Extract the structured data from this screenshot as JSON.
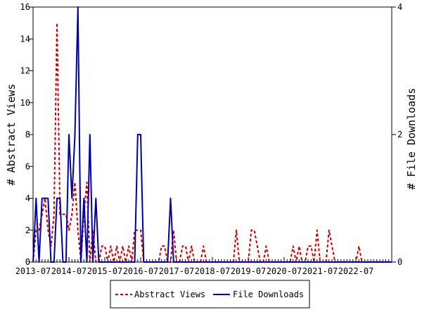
{
  "chart_data": {
    "type": "line",
    "y_left_label": "# Abstract Views",
    "y_right_label": "# File Downloads",
    "y_left_range": [
      0,
      16
    ],
    "y_right_range": [
      0,
      4
    ],
    "y_left_ticks": [
      "0",
      "2",
      "4",
      "6",
      "8",
      "10",
      "12",
      "14",
      "16"
    ],
    "y_right_ticks": [
      "0",
      "2",
      "4"
    ],
    "x_range": [
      "2013-07",
      "2023-07"
    ],
    "x_ticks": [
      "2013-07",
      "2014-07",
      "2015-07",
      "2016-07",
      "2017-07",
      "2018-07",
      "2019-07",
      "2020-07",
      "2021-07",
      "2022-07"
    ],
    "legend_position": "bottom",
    "series": [
      {
        "name": "Abstract Views",
        "axis": "left",
        "color": "#cc0000",
        "style": "dashed",
        "points": [
          [
            "2013-07",
            0
          ],
          [
            "2013-08",
            2
          ],
          [
            "2013-09",
            2
          ],
          [
            "2013-10",
            3
          ],
          [
            "2013-11",
            4
          ],
          [
            "2013-12",
            2
          ],
          [
            "2014-01",
            1
          ],
          [
            "2014-02",
            3
          ],
          [
            "2014-03",
            15
          ],
          [
            "2014-04",
            3
          ],
          [
            "2014-05",
            3
          ],
          [
            "2014-06",
            3
          ],
          [
            "2014-07",
            2
          ],
          [
            "2014-08",
            3
          ],
          [
            "2014-09",
            5
          ],
          [
            "2014-10",
            2
          ],
          [
            "2014-11",
            0
          ],
          [
            "2014-12",
            3
          ],
          [
            "2015-01",
            5
          ],
          [
            "2015-02",
            0
          ],
          [
            "2015-03",
            2
          ],
          [
            "2015-04",
            0
          ],
          [
            "2015-05",
            0
          ],
          [
            "2015-06",
            1
          ],
          [
            "2015-07",
            1
          ],
          [
            "2015-08",
            0
          ],
          [
            "2015-09",
            1
          ],
          [
            "2015-10",
            0
          ],
          [
            "2015-11",
            1
          ],
          [
            "2015-12",
            0
          ],
          [
            "2016-01",
            1
          ],
          [
            "2016-02",
            0
          ],
          [
            "2016-03",
            1
          ],
          [
            "2016-04",
            0
          ],
          [
            "2016-05",
            2
          ],
          [
            "2016-06",
            2
          ],
          [
            "2016-07",
            2
          ],
          [
            "2016-08",
            0
          ],
          [
            "2016-09",
            0
          ],
          [
            "2016-10",
            0
          ],
          [
            "2016-11",
            0
          ],
          [
            "2016-12",
            0
          ],
          [
            "2017-01",
            0
          ],
          [
            "2017-02",
            1
          ],
          [
            "2017-03",
            1
          ],
          [
            "2017-04",
            0
          ],
          [
            "2017-05",
            0
          ],
          [
            "2017-06",
            2
          ],
          [
            "2017-07",
            0
          ],
          [
            "2017-08",
            0
          ],
          [
            "2017-09",
            1
          ],
          [
            "2017-10",
            1
          ],
          [
            "2017-11",
            0
          ],
          [
            "2017-12",
            1
          ],
          [
            "2018-01",
            0
          ],
          [
            "2018-02",
            0
          ],
          [
            "2018-03",
            0
          ],
          [
            "2018-04",
            1
          ],
          [
            "2018-05",
            0
          ],
          [
            "2018-06",
            0
          ],
          [
            "2018-07",
            0
          ],
          [
            "2018-08",
            0
          ],
          [
            "2018-09",
            0
          ],
          [
            "2018-10",
            0
          ],
          [
            "2018-11",
            0
          ],
          [
            "2018-12",
            0
          ],
          [
            "2019-01",
            0
          ],
          [
            "2019-02",
            0
          ],
          [
            "2019-03",
            2
          ],
          [
            "2019-04",
            0
          ],
          [
            "2019-05",
            0
          ],
          [
            "2019-06",
            0
          ],
          [
            "2019-07",
            0
          ],
          [
            "2019-08",
            2
          ],
          [
            "2019-09",
            2
          ],
          [
            "2019-10",
            1
          ],
          [
            "2019-11",
            0
          ],
          [
            "2019-12",
            0
          ],
          [
            "2020-01",
            1
          ],
          [
            "2020-02",
            0
          ],
          [
            "2020-03",
            0
          ],
          [
            "2020-04",
            0
          ],
          [
            "2020-05",
            0
          ],
          [
            "2020-06",
            0
          ],
          [
            "2020-07",
            0
          ],
          [
            "2020-08",
            0
          ],
          [
            "2020-09",
            0
          ],
          [
            "2020-10",
            1
          ],
          [
            "2020-11",
            0
          ],
          [
            "2020-12",
            1
          ],
          [
            "2021-01",
            0
          ],
          [
            "2021-02",
            0
          ],
          [
            "2021-03",
            1
          ],
          [
            "2021-04",
            1
          ],
          [
            "2021-05",
            0
          ],
          [
            "2021-06",
            2
          ],
          [
            "2021-07",
            0
          ],
          [
            "2021-08",
            0
          ],
          [
            "2021-09",
            0
          ],
          [
            "2021-10",
            2
          ],
          [
            "2021-11",
            1
          ],
          [
            "2021-12",
            0
          ],
          [
            "2022-01",
            0
          ],
          [
            "2022-02",
            0
          ],
          [
            "2022-03",
            0
          ],
          [
            "2022-04",
            0
          ],
          [
            "2022-05",
            0
          ],
          [
            "2022-06",
            0
          ],
          [
            "2022-07",
            0
          ],
          [
            "2022-08",
            1
          ],
          [
            "2022-09",
            0
          ],
          [
            "2022-10",
            0
          ],
          [
            "2022-11",
            0
          ],
          [
            "2022-12",
            0
          ],
          [
            "2023-01",
            0
          ],
          [
            "2023-02",
            0
          ],
          [
            "2023-03",
            0
          ],
          [
            "2023-04",
            0
          ],
          [
            "2023-05",
            0
          ],
          [
            "2023-06",
            0
          ],
          [
            "2023-07",
            0
          ]
        ]
      },
      {
        "name": "File Downloads",
        "axis": "right",
        "color": "#0000aa",
        "style": "solid",
        "points": [
          [
            "2013-07",
            0
          ],
          [
            "2013-08",
            1
          ],
          [
            "2013-09",
            0
          ],
          [
            "2013-10",
            1
          ],
          [
            "2013-11",
            1
          ],
          [
            "2013-12",
            1
          ],
          [
            "2014-01",
            0
          ],
          [
            "2014-02",
            0
          ],
          [
            "2014-03",
            1
          ],
          [
            "2014-04",
            1
          ],
          [
            "2014-05",
            0
          ],
          [
            "2014-06",
            0
          ],
          [
            "2014-07",
            2
          ],
          [
            "2014-08",
            1
          ],
          [
            "2014-09",
            2
          ],
          [
            "2014-10",
            4
          ],
          [
            "2014-11",
            0
          ],
          [
            "2014-12",
            1
          ],
          [
            "2015-01",
            0
          ],
          [
            "2015-02",
            2
          ],
          [
            "2015-03",
            0
          ],
          [
            "2015-04",
            1
          ],
          [
            "2015-05",
            0
          ],
          [
            "2015-06",
            0
          ],
          [
            "2015-07",
            0
          ],
          [
            "2015-08",
            0
          ],
          [
            "2015-09",
            0
          ],
          [
            "2015-10",
            0
          ],
          [
            "2015-11",
            0
          ],
          [
            "2015-12",
            0
          ],
          [
            "2016-01",
            0
          ],
          [
            "2016-02",
            0
          ],
          [
            "2016-03",
            0
          ],
          [
            "2016-04",
            0
          ],
          [
            "2016-05",
            0
          ],
          [
            "2016-06",
            2
          ],
          [
            "2016-07",
            2
          ],
          [
            "2016-08",
            0
          ],
          [
            "2016-09",
            0
          ],
          [
            "2016-10",
            0
          ],
          [
            "2016-11",
            0
          ],
          [
            "2016-12",
            0
          ],
          [
            "2017-01",
            0
          ],
          [
            "2017-02",
            0
          ],
          [
            "2017-03",
            0
          ],
          [
            "2017-04",
            0
          ],
          [
            "2017-05",
            1
          ],
          [
            "2017-06",
            0
          ],
          [
            "2017-07",
            0
          ],
          [
            "2017-08",
            0
          ],
          [
            "2017-09",
            0
          ],
          [
            "2017-10",
            0
          ],
          [
            "2017-11",
            0
          ],
          [
            "2017-12",
            0
          ],
          [
            "2018-01",
            0
          ],
          [
            "2018-07",
            0
          ],
          [
            "2019-01",
            0
          ],
          [
            "2019-07",
            0
          ],
          [
            "2020-01",
            0
          ],
          [
            "2020-07",
            0
          ],
          [
            "2021-01",
            0
          ],
          [
            "2021-07",
            0
          ],
          [
            "2022-01",
            0
          ],
          [
            "2022-07",
            0
          ],
          [
            "2023-01",
            0
          ],
          [
            "2023-07",
            0
          ]
        ]
      }
    ]
  }
}
